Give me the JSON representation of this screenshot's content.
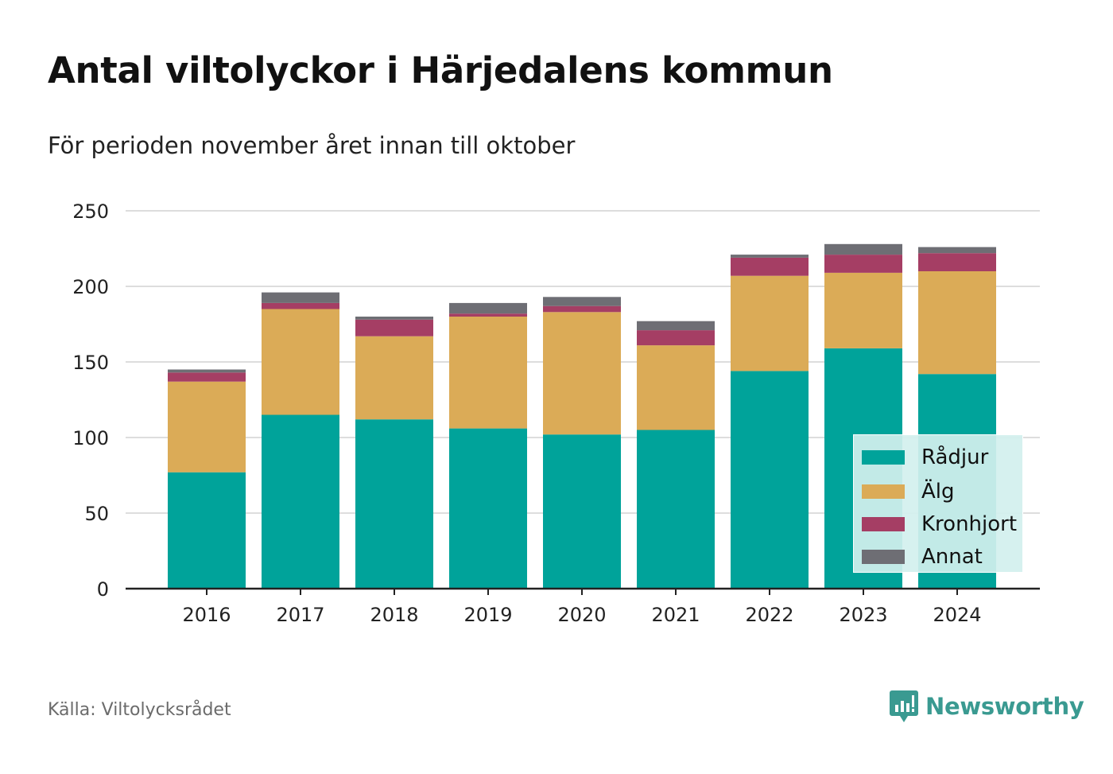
{
  "header": {
    "title": "Antal viltolyckor i Härjedalens kommun",
    "subtitle": "För perioden november året innan till oktober"
  },
  "footer": {
    "source": "Källa: Viltolycksrådet",
    "brand": "Newsworthy",
    "brand_icon": "bar-chart-speech-bubble-icon"
  },
  "colors": {
    "Rådjur": "#00a39a",
    "Älg": "#dbab57",
    "Kronhjort": "#a53e64",
    "Annat": "#6e6e74",
    "grid": "#dddddd",
    "axis": "#222222",
    "brand": "#3a9a91"
  },
  "chart_data": {
    "type": "bar",
    "stacked": true,
    "title": "Antal viltolyckor i Härjedalens kommun",
    "subtitle": "För perioden november året innan till oktober",
    "xlabel": "",
    "ylabel": "",
    "ylim": [
      0,
      250
    ],
    "yticks": [
      0,
      50,
      100,
      150,
      200,
      250
    ],
    "grid": true,
    "legend_position": "bottom-right",
    "categories": [
      "2016",
      "2017",
      "2018",
      "2019",
      "2020",
      "2021",
      "2022",
      "2023",
      "2024"
    ],
    "series": [
      {
        "name": "Rådjur",
        "values": [
          77,
          115,
          112,
          106,
          102,
          105,
          144,
          159,
          142
        ]
      },
      {
        "name": "Älg",
        "values": [
          60,
          70,
          55,
          74,
          81,
          56,
          63,
          50,
          68
        ]
      },
      {
        "name": "Kronhjort",
        "values": [
          6,
          4,
          11,
          2,
          4,
          10,
          12,
          12,
          12
        ]
      },
      {
        "name": "Annat",
        "values": [
          2,
          7,
          2,
          7,
          6,
          6,
          2,
          7,
          4
        ]
      }
    ]
  }
}
